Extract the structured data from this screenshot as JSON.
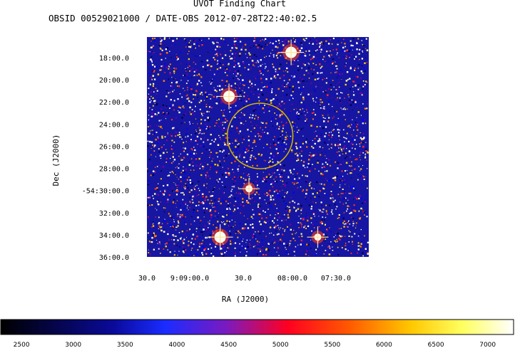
{
  "chart_data": {
    "type": "heatmap",
    "title": "UVOT Finding Chart",
    "subtitle": "OBSID 00529021000 / DATE-OBS 2012-07-28T22:40:02.5",
    "xlabel": "RA (J2000)",
    "ylabel": "Dec (J2000)",
    "x_ticks": [
      "30.0",
      "9:09:00.0",
      "30.0",
      "08:00.0",
      "07:30.0"
    ],
    "y_ticks": [
      "18:00.0",
      "20:00.0",
      "22:00.0",
      "24:00.0",
      "26:00.0",
      "28:00.0",
      "-54:30:00.0",
      "32:00.0",
      "34:00.0",
      "36:00.0"
    ],
    "colorbar": {
      "ticks": [
        2500,
        3000,
        3500,
        4000,
        4500,
        5000,
        5500,
        6000,
        6500,
        7000
      ],
      "range": [
        2300,
        7250
      ]
    },
    "stars": [
      {
        "name": "bright-star-a",
        "ra_fraction": 0.37,
        "dec_fraction": 0.27,
        "magnitude_class": "bright"
      },
      {
        "name": "bright-star-b",
        "ra_fraction": 0.65,
        "dec_fraction": 0.07,
        "magnitude_class": "bright"
      },
      {
        "name": "bright-star-c",
        "ra_fraction": 0.33,
        "dec_fraction": 0.91,
        "magnitude_class": "bright"
      },
      {
        "name": "bright-star-d",
        "ra_fraction": 0.77,
        "dec_fraction": 0.91,
        "magnitude_class": "medium"
      },
      {
        "name": "star-e",
        "ra_fraction": 0.46,
        "dec_fraction": 0.69,
        "magnitude_class": "medium"
      }
    ],
    "target_circle": {
      "ra_fraction": 0.51,
      "dec_fraction": 0.45,
      "color": "#e6c200"
    }
  },
  "colors": {
    "background_image": "#1414a0",
    "circle": "#d8b800"
  }
}
